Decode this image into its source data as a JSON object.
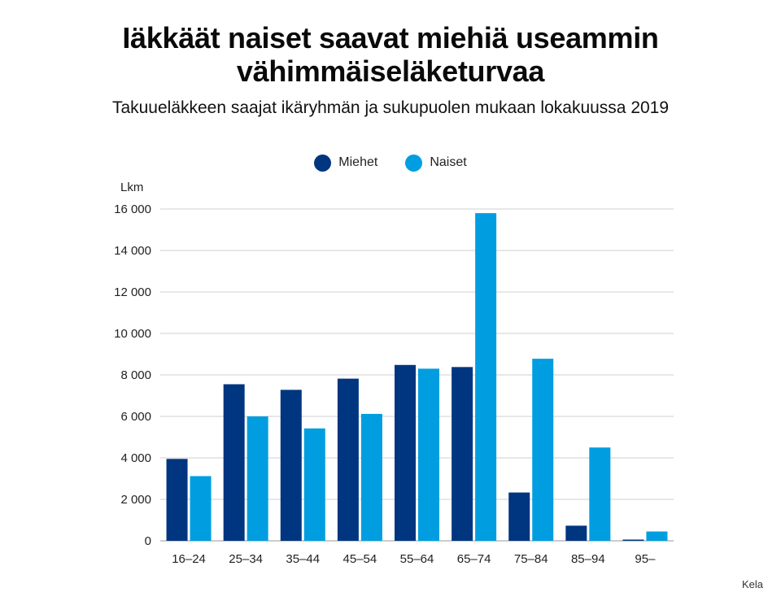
{
  "title_line1": "Iäkkäät naiset saavat miehiä useammin",
  "title_line2": "vähimmäiseläketurvaa",
  "subtitle": "Takuueläkkeen saajat ikäryhmän ja sukupuolen mukaan lokakuussa 2019",
  "unit_label": "Lkm",
  "source": "Kela",
  "colors": {
    "men": "#003580",
    "women": "#009ee0",
    "grid": "#cfcfcf"
  },
  "chart_data": {
    "type": "bar",
    "title": "Iäkkäät naiset saavat miehiä useammin vähimmäiseläketurvaa",
    "subtitle": "Takuueläkkeen saajat ikäryhmän ja sukupuolen mukaan lokakuussa 2019",
    "ylabel": "Lkm",
    "xlabel": "",
    "ylim": [
      0,
      16000
    ],
    "yticks": [
      0,
      2000,
      4000,
      6000,
      8000,
      10000,
      12000,
      14000,
      16000
    ],
    "ytick_labels": [
      "0",
      "2 000",
      "4 000",
      "6 000",
      "8 000",
      "10 000",
      "12 000",
      "14 000",
      "16 000"
    ],
    "categories": [
      "16–24",
      "25–34",
      "35–44",
      "45–54",
      "55–64",
      "65–74",
      "75–84",
      "85–94",
      "95–"
    ],
    "series": [
      {
        "name": "Miehet",
        "values": [
          3950,
          7550,
          7280,
          7820,
          8480,
          8380,
          2330,
          730,
          60
        ]
      },
      {
        "name": "Naiset",
        "values": [
          3120,
          6000,
          5420,
          6120,
          8300,
          15800,
          8780,
          4500,
          450
        ]
      }
    ],
    "grid": true,
    "legend_position": "top-center"
  }
}
